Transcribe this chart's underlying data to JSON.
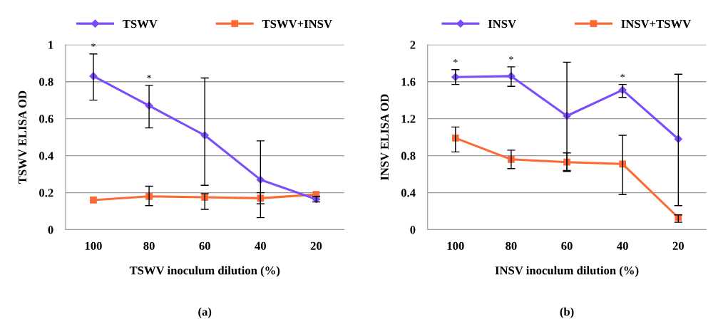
{
  "chart_data": [
    {
      "type": "line",
      "xlabel": "TSWV inoculum dilution (%)",
      "ylabel": "TSWV ELISA OD",
      "categories": [
        "100",
        "80",
        "60",
        "40",
        "20"
      ],
      "ylim": [
        0,
        1
      ],
      "yticks": [
        0,
        0.2,
        0.4,
        0.6,
        0.8,
        1
      ],
      "grid": "y",
      "legend": "top",
      "series": [
        {
          "name": "TSWV",
          "color": "#7b4dfa",
          "marker": "diamond",
          "values": [
            0.83,
            0.67,
            0.51,
            0.27,
            0.165
          ],
          "errors": [
            [
              0.7,
              0.95
            ],
            [
              0.55,
              0.78
            ],
            [
              0.24,
              0.82
            ],
            [
              0.065,
              0.48
            ],
            [
              0.15,
              0.18
            ]
          ]
        },
        {
          "name": "TSWV+INSV",
          "color": "#fb6a35",
          "marker": "square",
          "values": [
            0.16,
            0.18,
            0.175,
            0.17,
            0.19
          ],
          "errors": [
            null,
            [
              0.13,
              0.235
            ],
            [
              0.11,
              0.195
            ],
            [
              0.14,
              0.2
            ],
            null
          ]
        }
      ],
      "annotations": [
        {
          "text": "*",
          "x": "100",
          "y": 0.95
        },
        {
          "text": "*",
          "x": "80",
          "y": 0.78
        },
        "(a)"
      ]
    },
    {
      "type": "line",
      "xlabel": "INSV inoculum dilution (%)",
      "ylabel": "INSV ELISA OD",
      "categories": [
        "100",
        "80",
        "60",
        "40",
        "20"
      ],
      "ylim": [
        0,
        2
      ],
      "yticks": [
        0,
        0.4,
        0.8,
        1.2,
        1.6,
        2
      ],
      "grid": "y",
      "legend": "top",
      "series": [
        {
          "name": "INSV",
          "color": "#7b4dfa",
          "marker": "diamond",
          "values": [
            1.65,
            1.66,
            1.23,
            1.51,
            0.98
          ],
          "errors": [
            [
              1.57,
              1.73
            ],
            [
              1.55,
              1.76
            ],
            [
              0.64,
              1.81
            ],
            [
              1.43,
              1.57
            ],
            [
              0.26,
              1.68
            ]
          ]
        },
        {
          "name": "INSV+TSWV",
          "color": "#fb6a35",
          "marker": "square",
          "values": [
            0.99,
            0.76,
            0.73,
            0.71,
            0.13
          ],
          "errors": [
            [
              0.84,
              1.11
            ],
            [
              0.66,
              0.86
            ],
            [
              0.63,
              0.83
            ],
            [
              0.38,
              1.02
            ],
            [
              0.08,
              0.16
            ]
          ]
        }
      ],
      "annotations": [
        {
          "text": "*",
          "x": "100",
          "y": 1.73
        },
        {
          "text": "*",
          "x": "80",
          "y": 1.76
        },
        {
          "text": "*",
          "x": "40",
          "y": 1.57
        },
        "(b)"
      ]
    }
  ]
}
